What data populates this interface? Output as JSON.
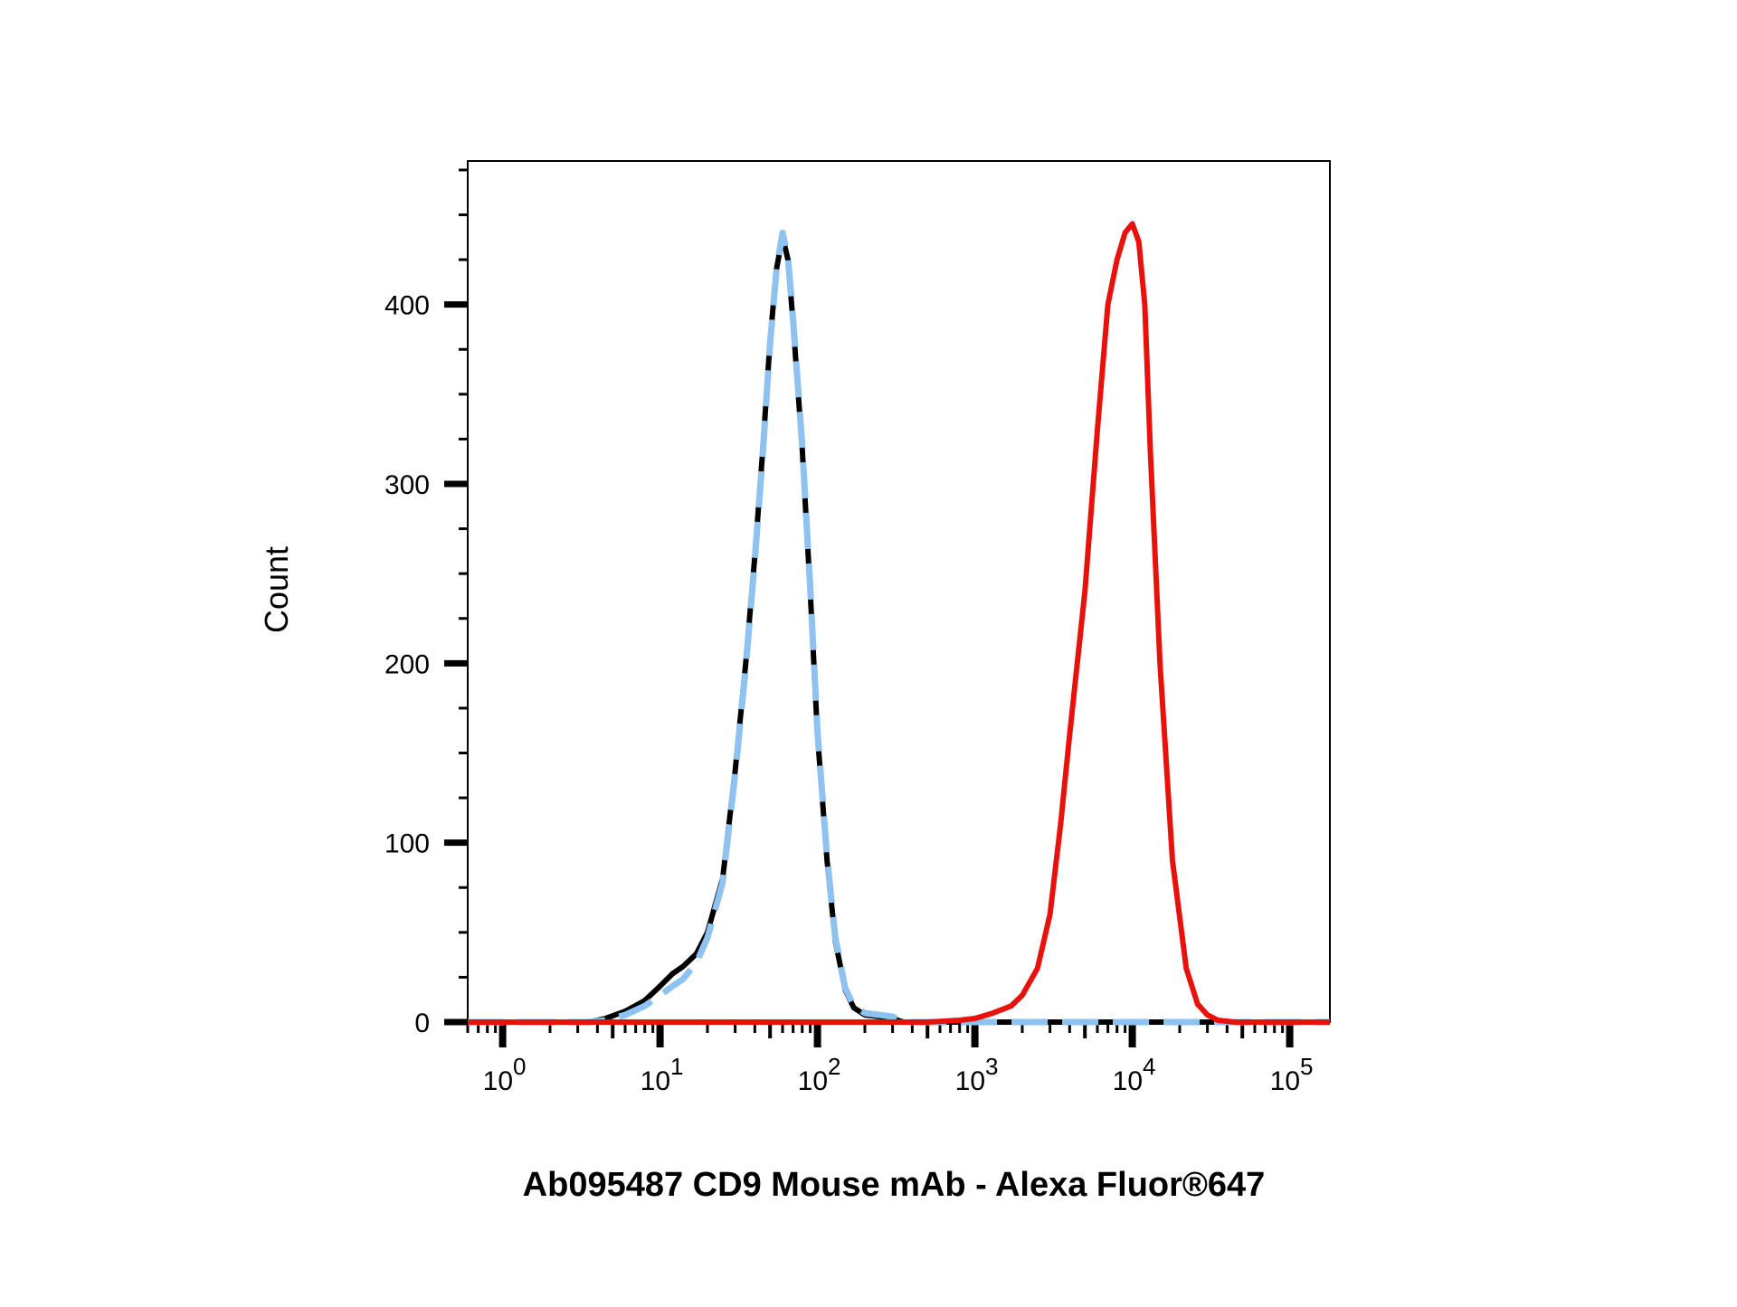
{
  "chart_data": {
    "type": "line",
    "xscale": "log",
    "xlim": [
      0.6,
      180000
    ],
    "ylim": [
      0,
      480
    ],
    "xlabel": "Ab095487 CD9 Mouse mAb - Alexa Fluor®647",
    "ylabel": "Count",
    "x_ticks": [
      {
        "value": 1,
        "base": "10",
        "exp": "0"
      },
      {
        "value": 10,
        "base": "10",
        "exp": "1"
      },
      {
        "value": 100,
        "base": "10",
        "exp": "2"
      },
      {
        "value": 1000,
        "base": "10",
        "exp": "3"
      },
      {
        "value": 10000,
        "base": "10",
        "exp": "4"
      },
      {
        "value": 100000,
        "base": "10",
        "exp": "5"
      }
    ],
    "y_ticks": [
      {
        "value": 0,
        "label": "0"
      },
      {
        "value": 100,
        "label": "100"
      },
      {
        "value": 200,
        "label": "200"
      },
      {
        "value": 300,
        "label": "300"
      },
      {
        "value": 400,
        "label": "400"
      }
    ],
    "grid": false,
    "series": [
      {
        "color": "#000000",
        "style": "solid",
        "x": [
          0.6,
          3.5,
          4.5,
          6,
          8,
          10,
          12,
          14,
          17,
          20,
          25,
          30,
          35,
          40,
          45,
          50,
          55,
          60,
          65,
          70,
          80,
          90,
          100,
          115,
          130,
          150,
          170,
          200,
          250,
          300,
          350,
          500,
          1000,
          10000,
          180000
        ],
        "y": [
          0,
          0,
          2,
          6,
          12,
          20,
          27,
          31,
          38,
          50,
          80,
          140,
          200,
          260,
          320,
          380,
          420,
          438,
          425,
          390,
          320,
          240,
          160,
          90,
          45,
          18,
          8,
          4,
          3,
          2,
          0,
          0,
          0,
          0,
          0
        ]
      },
      {
        "color": "#8ec2f0",
        "style": "dashed",
        "x": [
          0.6,
          3.5,
          4.5,
          6,
          8,
          10,
          12,
          14,
          17,
          20,
          25,
          30,
          35,
          40,
          45,
          50,
          55,
          60,
          65,
          70,
          80,
          90,
          100,
          115,
          130,
          150,
          170,
          200,
          250,
          300,
          350,
          500,
          1000,
          10000,
          180000
        ],
        "y": [
          0,
          0,
          1,
          4,
          9,
          15,
          20,
          24,
          33,
          47,
          78,
          138,
          198,
          258,
          318,
          378,
          420,
          440,
          426,
          392,
          322,
          242,
          162,
          92,
          47,
          19,
          9,
          5,
          4,
          3,
          0,
          0,
          0,
          0,
          0
        ]
      },
      {
        "color": "#e8120c",
        "style": "solid",
        "x": [
          0.6,
          500,
          800,
          1000,
          1300,
          1700,
          2000,
          2500,
          3000,
          3500,
          4000,
          5000,
          6000,
          7000,
          8000,
          9000,
          10000,
          11000,
          12000,
          13000,
          15000,
          18000,
          22000,
          26000,
          30000,
          35000,
          45000,
          180000
        ],
        "y": [
          0,
          0,
          1,
          2,
          5,
          9,
          15,
          30,
          60,
          110,
          160,
          240,
          330,
          400,
          425,
          440,
          445,
          435,
          400,
          320,
          200,
          90,
          30,
          10,
          4,
          1,
          0,
          0
        ]
      }
    ]
  }
}
